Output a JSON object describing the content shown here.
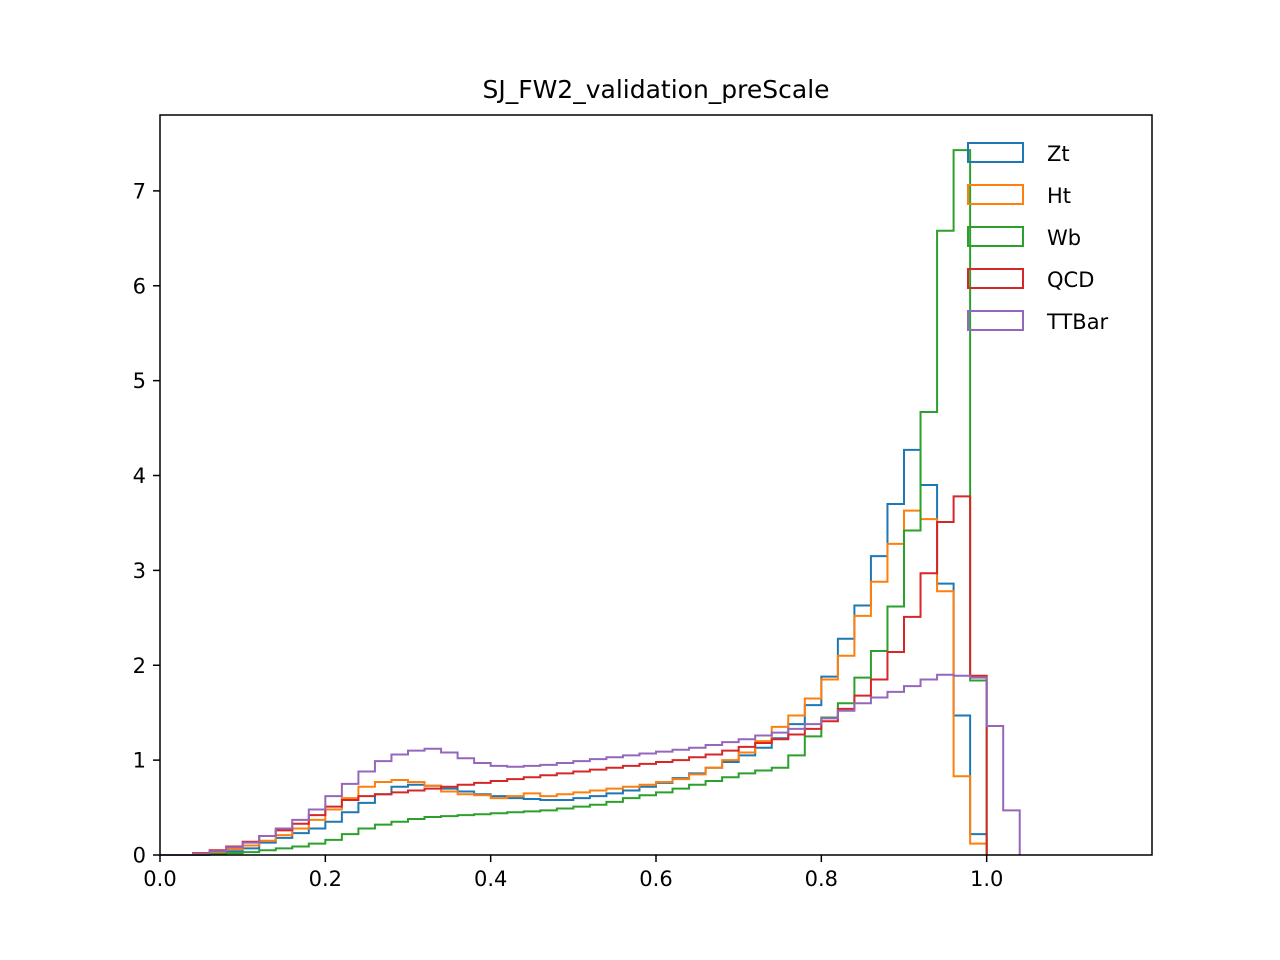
{
  "chart_data": {
    "type": "histogram",
    "title": "SJ_FW2_validation_preScale",
    "xlabel": "",
    "ylabel": "",
    "xlim": [
      0.0,
      1.2
    ],
    "ylim": [
      0.0,
      7.8
    ],
    "xticks": [
      0.0,
      0.2,
      0.4,
      0.6,
      0.8,
      1.0
    ],
    "xtick_labels": [
      "0.0",
      "0.2",
      "0.4",
      "0.6",
      "0.8",
      "1.0"
    ],
    "yticks": [
      0,
      1,
      2,
      3,
      4,
      5,
      6,
      7
    ],
    "ytick_labels": [
      "0",
      "1",
      "2",
      "3",
      "4",
      "5",
      "6",
      "7"
    ],
    "grid": false,
    "legend_position": "top-right",
    "bin_start": 0.0,
    "bin_width": 0.02,
    "series": [
      {
        "name": "Zt",
        "color": "#1f77b4",
        "values": [
          0,
          0,
          0.01,
          0.02,
          0.04,
          0.07,
          0.13,
          0.18,
          0.23,
          0.28,
          0.35,
          0.45,
          0.55,
          0.64,
          0.72,
          0.74,
          0.73,
          0.7,
          0.67,
          0.64,
          0.62,
          0.6,
          0.59,
          0.58,
          0.58,
          0.6,
          0.62,
          0.65,
          0.68,
          0.72,
          0.76,
          0.81,
          0.86,
          0.92,
          0.98,
          1.05,
          1.13,
          1.23,
          1.38,
          1.58,
          1.88,
          2.28,
          2.63,
          3.15,
          3.7,
          4.27,
          3.9,
          2.86,
          1.47,
          0.22
        ]
      },
      {
        "name": "Ht",
        "color": "#ff7f0e",
        "values": [
          0,
          0,
          0.01,
          0.03,
          0.06,
          0.1,
          0.15,
          0.21,
          0.28,
          0.37,
          0.48,
          0.6,
          0.72,
          0.77,
          0.79,
          0.77,
          0.73,
          0.67,
          0.64,
          0.63,
          0.6,
          0.62,
          0.65,
          0.62,
          0.64,
          0.66,
          0.68,
          0.7,
          0.72,
          0.74,
          0.77,
          0.8,
          0.85,
          0.92,
          1.0,
          1.08,
          1.2,
          1.35,
          1.47,
          1.65,
          1.85,
          2.1,
          2.52,
          2.88,
          3.28,
          3.63,
          3.54,
          2.78,
          0.83,
          0.12
        ]
      },
      {
        "name": "Wb",
        "color": "#2ca02c",
        "values": [
          0,
          0,
          0,
          0.01,
          0.02,
          0.03,
          0.05,
          0.07,
          0.09,
          0.12,
          0.16,
          0.22,
          0.28,
          0.32,
          0.35,
          0.38,
          0.4,
          0.41,
          0.42,
          0.43,
          0.44,
          0.45,
          0.46,
          0.47,
          0.49,
          0.51,
          0.53,
          0.56,
          0.6,
          0.63,
          0.66,
          0.7,
          0.74,
          0.78,
          0.82,
          0.86,
          0.89,
          0.92,
          1.05,
          1.25,
          1.45,
          1.6,
          1.87,
          2.15,
          2.62,
          3.42,
          4.67,
          6.58,
          7.43,
          1.84
        ]
      },
      {
        "name": "QCD",
        "color": "#d62728",
        "values": [
          0,
          0,
          0.02,
          0.05,
          0.09,
          0.14,
          0.2,
          0.26,
          0.33,
          0.42,
          0.51,
          0.58,
          0.62,
          0.64,
          0.66,
          0.68,
          0.7,
          0.72,
          0.74,
          0.76,
          0.78,
          0.8,
          0.82,
          0.84,
          0.86,
          0.88,
          0.9,
          0.92,
          0.94,
          0.96,
          0.98,
          1.0,
          1.03,
          1.06,
          1.1,
          1.14,
          1.18,
          1.22,
          1.27,
          1.33,
          1.41,
          1.54,
          1.68,
          1.85,
          2.14,
          2.51,
          2.97,
          3.51,
          3.78,
          1.89
        ]
      },
      {
        "name": "TTBar",
        "color": "#9467bd",
        "values": [
          0,
          0,
          0.01,
          0.04,
          0.08,
          0.13,
          0.2,
          0.28,
          0.37,
          0.48,
          0.62,
          0.75,
          0.88,
          0.99,
          1.06,
          1.1,
          1.12,
          1.08,
          1.02,
          0.97,
          0.94,
          0.93,
          0.94,
          0.95,
          0.97,
          0.99,
          1.01,
          1.03,
          1.05,
          1.07,
          1.09,
          1.11,
          1.13,
          1.16,
          1.19,
          1.22,
          1.26,
          1.29,
          1.33,
          1.38,
          1.44,
          1.52,
          1.6,
          1.66,
          1.72,
          1.78,
          1.85,
          1.9,
          1.89,
          1.87,
          1.36,
          0.47
        ]
      }
    ]
  }
}
